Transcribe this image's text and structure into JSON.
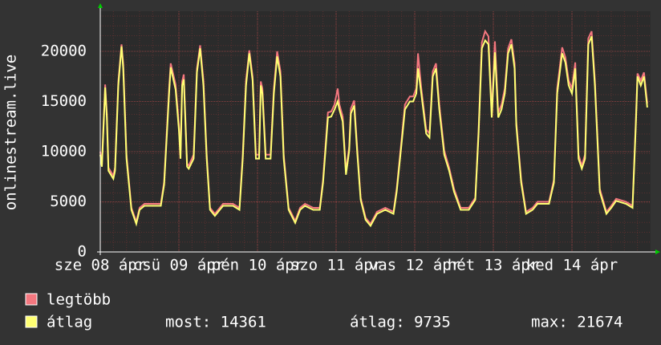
{
  "chart_data": {
    "type": "line",
    "y_label": "onlinestream.live",
    "xlim": [
      0,
      168
    ],
    "xticks": [
      {
        "value": 0,
        "label": "sze 08 ápr"
      },
      {
        "value": 24,
        "label": "csü 09 ápr"
      },
      {
        "value": 48,
        "label": "pén 10 ápr"
      },
      {
        "value": 72,
        "label": "szo 11 ápr"
      },
      {
        "value": 96,
        "label": "vas 12 ápr"
      },
      {
        "value": 120,
        "label": "hét 13 ápr"
      },
      {
        "value": 144,
        "label": "ked 14 ápr"
      }
    ],
    "ylim": [
      0,
      24000
    ],
    "yticks": [
      0,
      5000,
      10000,
      15000,
      20000
    ],
    "grid": true,
    "x": [
      0,
      0.5,
      1.5,
      2,
      2.5,
      4,
      4.5,
      5.5,
      6.5,
      7,
      8,
      9.5,
      11,
      12,
      13.5,
      15,
      18.5,
      19.5,
      21,
      21.5,
      23,
      24,
      24.5,
      25,
      25.5,
      26.5,
      27,
      28.5,
      29.5,
      30.5,
      31.5,
      32.5,
      33.5,
      35,
      36.5,
      37.5,
      40.5,
      42.5,
      43.5,
      44.5,
      45.5,
      46.5,
      47.5,
      48.5,
      49,
      49.5,
      50.5,
      52,
      53,
      54,
      55,
      56,
      57.5,
      59.5,
      61,
      62.5,
      65,
      67,
      68,
      69.5,
      70.5,
      71.5,
      72.5,
      73,
      74,
      75,
      76,
      76.5,
      77.5,
      78.5,
      79.5,
      81,
      82.5,
      84.5,
      87,
      89.5,
      90.5,
      92,
      93,
      94.5,
      95.5,
      96.5,
      97,
      98,
      99.5,
      100.5,
      101.5,
      102.5,
      103.5,
      105,
      106.5,
      108,
      110,
      112.5,
      114.5,
      115.5,
      116.5,
      117.5,
      118.5,
      119.5,
      120.5,
      121.5,
      122.5,
      123.5,
      124.5,
      125.5,
      126.5,
      127,
      128.5,
      130,
      132,
      133.5,
      137,
      138.5,
      139.5,
      141,
      142,
      143,
      144,
      145,
      146,
      147,
      148,
      149,
      150,
      151,
      152.5,
      154.5,
      156,
      157.5,
      160.5,
      162.5,
      163.5,
      164,
      165,
      166,
      167
    ],
    "series": [
      {
        "name": "legtöbb",
        "color": "#f4777f",
        "values": [
          10000,
          8800,
          16700,
          13800,
          8400,
          7600,
          8400,
          17000,
          20700,
          18800,
          9700,
          4400,
          3000,
          4400,
          4800,
          4800,
          4800,
          7000,
          16300,
          18800,
          16700,
          12700,
          9700,
          17000,
          17700,
          8800,
          8600,
          9700,
          18300,
          20600,
          17100,
          9700,
          4400,
          3800,
          4400,
          4800,
          4800,
          4400,
          9700,
          17100,
          20100,
          17500,
          9700,
          9700,
          17000,
          16300,
          9700,
          9700,
          16300,
          20000,
          18000,
          9700,
          4400,
          3100,
          4400,
          4800,
          4400,
          4400,
          7200,
          13900,
          14000,
          14700,
          16300,
          14700,
          13500,
          8000,
          10500,
          14300,
          15100,
          10100,
          5400,
          3400,
          2800,
          4000,
          4400,
          4000,
          6300,
          11300,
          14700,
          15500,
          15500,
          16300,
          19800,
          16300,
          12200,
          11800,
          18000,
          18800,
          14700,
          10100,
          8400,
          6300,
          4400,
          4400,
          5400,
          12200,
          20900,
          22000,
          21500,
          13900,
          21000,
          13900,
          14700,
          16300,
          20300,
          21200,
          18800,
          13000,
          7200,
          4000,
          4400,
          5000,
          5000,
          7200,
          16300,
          20400,
          19400,
          17100,
          16300,
          18900,
          9700,
          8600,
          9700,
          21300,
          22000,
          17100,
          6300,
          4000,
          4600,
          5300,
          5000,
          4600,
          13000,
          17800,
          17100,
          17900,
          14800
        ]
      },
      {
        "name": "átlag",
        "color": "#ffff73",
        "values": [
          9700,
          8500,
          16400,
          13400,
          8100,
          7300,
          8100,
          16600,
          20500,
          18300,
          9300,
          4200,
          2800,
          4200,
          4600,
          4600,
          4600,
          6700,
          15800,
          18400,
          16200,
          12200,
          9300,
          16600,
          17200,
          8500,
          8300,
          9300,
          17900,
          20300,
          16600,
          9300,
          4200,
          3600,
          4200,
          4600,
          4600,
          4200,
          9300,
          16600,
          19800,
          17100,
          9300,
          9300,
          16600,
          15800,
          9300,
          9300,
          15800,
          19500,
          17500,
          9300,
          4200,
          2900,
          4200,
          4600,
          4200,
          4200,
          6900,
          13400,
          13500,
          14200,
          15000,
          14200,
          13000,
          7700,
          10100,
          13800,
          14600,
          9700,
          5200,
          3200,
          2600,
          3800,
          4200,
          3800,
          6000,
          10900,
          14200,
          15000,
          15000,
          15800,
          18300,
          15800,
          11800,
          11400,
          17500,
          18300,
          14200,
          9700,
          8100,
          6000,
          4200,
          4200,
          5200,
          11800,
          20300,
          21100,
          20700,
          13400,
          19900,
          13400,
          14200,
          15800,
          19800,
          20700,
          18300,
          12600,
          6900,
          3800,
          4200,
          4800,
          4800,
          6900,
          15800,
          19800,
          18900,
          16600,
          15800,
          18300,
          9300,
          8300,
          9300,
          20700,
          21500,
          16600,
          6000,
          3800,
          4400,
          5100,
          4800,
          4400,
          12600,
          17500,
          16600,
          17500,
          14400
        ]
      }
    ],
    "legend_stats": [
      "most: 14361",
      "átlag: 9735",
      "max: 21674"
    ]
  }
}
